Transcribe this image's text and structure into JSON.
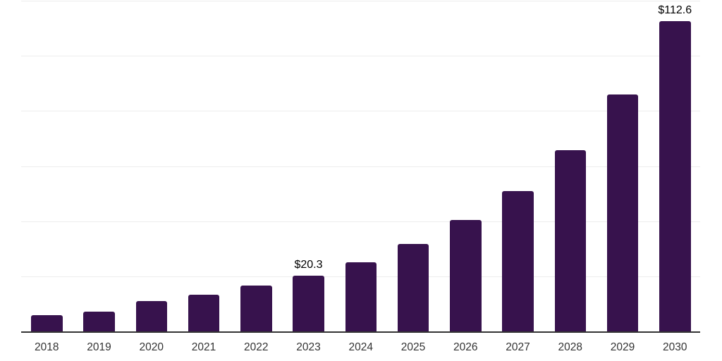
{
  "chart_data": {
    "type": "bar",
    "title": "",
    "xlabel": "",
    "ylabel": "",
    "categories": [
      "2018",
      "2019",
      "2020",
      "2021",
      "2022",
      "2023",
      "2024",
      "2025",
      "2026",
      "2027",
      "2028",
      "2029",
      "2030"
    ],
    "values": [
      6.0,
      7.2,
      11.0,
      13.4,
      16.6,
      20.3,
      25.0,
      31.6,
      40.3,
      51.0,
      65.8,
      86.0,
      112.6
    ],
    "value_labels": {
      "2023": "$20.3",
      "2030": "$112.6"
    },
    "ylim": [
      0,
      120
    ],
    "grid_step": 20,
    "grid": "horizontal-only",
    "legend": "none",
    "colors": {
      "bar": "#37124D",
      "axis_line": "#333333",
      "gridline": "#ededed",
      "tick_label": "#333333",
      "value_label": "#000000",
      "background": "#ffffff"
    }
  }
}
